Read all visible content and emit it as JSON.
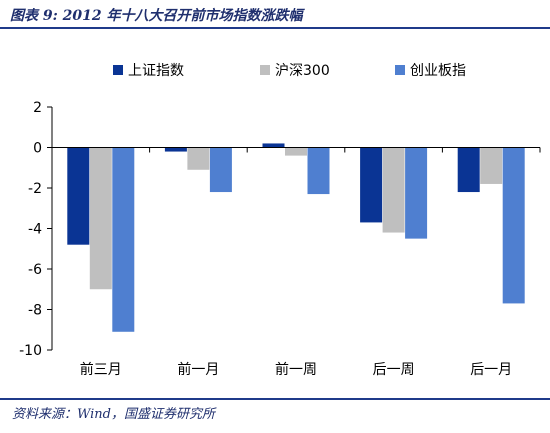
{
  "header": {
    "title": "图表 9:  2012 年十八大召开前市场指数涨跌幅"
  },
  "footer": {
    "source": "资料来源：Wind，国盛证券研究所"
  },
  "colors": {
    "rule": "#1f3a8a"
  },
  "chart_data": {
    "type": "bar",
    "title": "",
    "xlabel": "",
    "ylabel": "",
    "categories": [
      "前三月",
      "前一月",
      "前一周",
      "后一周",
      "后一月"
    ],
    "series": [
      {
        "name": "上证指数",
        "color": "#0a3494",
        "values": [
          -4.8,
          -0.2,
          0.2,
          -3.7,
          -2.2
        ]
      },
      {
        "name": "沪深300",
        "color": "#bfbfbf",
        "values": [
          -7.0,
          -1.1,
          -0.4,
          -4.2,
          -1.8
        ]
      },
      {
        "name": "创业板指",
        "color": "#4f7fd0",
        "values": [
          -9.1,
          -2.2,
          -2.3,
          -4.5,
          -7.7
        ]
      }
    ],
    "ylim": [
      -10,
      2
    ],
    "yticks": [
      2,
      0,
      -2,
      -4,
      -6,
      -8,
      -10
    ],
    "grid": false,
    "legend_position": "top"
  }
}
